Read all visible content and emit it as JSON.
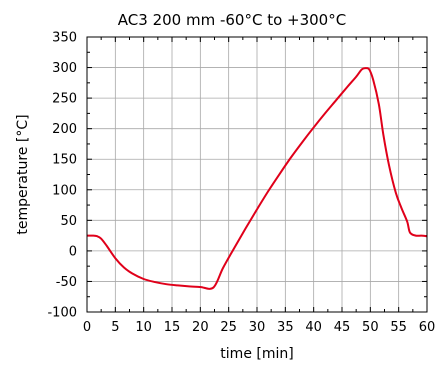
{
  "chart_data": {
    "type": "line",
    "title": "AC3 200 mm -60°C to +300°C",
    "xlabel": "time [min]",
    "ylabel": "temperature [°C]",
    "xlim": [
      0,
      60
    ],
    "ylim": [
      -100,
      350
    ],
    "xticks": [
      0,
      5,
      10,
      15,
      20,
      25,
      30,
      35,
      40,
      45,
      50,
      55,
      60
    ],
    "yticks": [
      -100,
      -50,
      0,
      50,
      100,
      150,
      200,
      250,
      300,
      350
    ],
    "grid": true,
    "series": [
      {
        "color": "#e0001a",
        "x": [
          0,
          1,
          1.8,
          2.5,
          3.5,
          5,
          6.5,
          8,
          10,
          12,
          14,
          16,
          18,
          20,
          22.3,
          24,
          26,
          28,
          30,
          32,
          34,
          36,
          38,
          40,
          42,
          44,
          46,
          47.5,
          48.5,
          49.2,
          49.8,
          50.5,
          51.5,
          52.3,
          53.3,
          54.5,
          55.5,
          56.5,
          57,
          58,
          59,
          60
        ],
        "y": [
          25,
          25,
          24,
          20,
          8,
          -12,
          -27,
          -37,
          -46,
          -51,
          -54.5,
          -56.5,
          -58,
          -59,
          -60,
          -28,
          5,
          37,
          68,
          98,
          126,
          153,
          178,
          202,
          225,
          247,
          269,
          285,
          297,
          299,
          297,
          280,
          240,
          190,
          140,
          95,
          70,
          48,
          30,
          25,
          25,
          24
        ]
      }
    ]
  }
}
